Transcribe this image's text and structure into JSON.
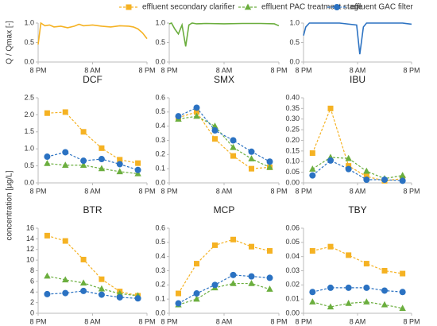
{
  "legend": {
    "position": "top",
    "items": [
      {
        "name": "effluent secondary clarifier",
        "color": "#F5B223",
        "marker": "square"
      },
      {
        "name": "effluent PAC treatment stage",
        "color": "#6BAE3E",
        "marker": "triangle"
      },
      {
        "name": "effluent GAC filter",
        "color": "#2B72C2",
        "marker": "circle"
      }
    ]
  },
  "chart_data": [
    {
      "type": "line",
      "ylabel": "Q / Qmax [-]",
      "color": "#F5B223",
      "xlim": [
        0,
        24
      ],
      "ylim": [
        0,
        1
      ],
      "xticks": [
        {
          "value": 0,
          "label": "8 PM"
        },
        {
          "value": 12,
          "label": "8 AM"
        },
        {
          "value": 24,
          "label": "8 PM"
        }
      ],
      "yticks": [
        {
          "value": 0,
          "label": "0.0"
        },
        0.5,
        {
          "value": 1,
          "label": "1.0"
        }
      ],
      "x": [
        0,
        0.6,
        1.5,
        2.5,
        3.5,
        5,
        6.5,
        8,
        9,
        10,
        12,
        14,
        16,
        18,
        20,
        21,
        22,
        23,
        24
      ],
      "values": [
        0.45,
        1.0,
        0.93,
        0.95,
        0.9,
        0.92,
        0.88,
        0.92,
        0.97,
        0.93,
        0.95,
        0.92,
        0.9,
        0.93,
        0.92,
        0.9,
        0.85,
        0.75,
        0.6
      ]
    },
    {
      "type": "line",
      "color": "#6BAE3E",
      "xlim": [
        0,
        24
      ],
      "ylim": [
        0,
        1
      ],
      "xticks": [
        {
          "value": 0,
          "label": "8 PM"
        },
        {
          "value": 12,
          "label": "8 AM"
        },
        {
          "value": 24,
          "label": "8 PM"
        }
      ],
      "yticks": [
        {
          "value": 0,
          "label": "0.0"
        },
        0.5,
        {
          "value": 1,
          "label": "1.0"
        }
      ],
      "x": [
        0,
        0.5,
        1.2,
        2,
        2.8,
        3.6,
        4.3,
        5,
        6,
        8,
        12,
        16,
        20,
        23,
        24
      ],
      "values": [
        0.98,
        1.0,
        0.85,
        0.72,
        0.95,
        0.4,
        0.95,
        1.0,
        0.98,
        0.99,
        0.98,
        0.99,
        0.99,
        0.98,
        0.93
      ]
    },
    {
      "type": "line",
      "color": "#2B72C2",
      "xlim": [
        0,
        24
      ],
      "ylim": [
        0,
        1
      ],
      "xticks": [
        {
          "value": 0,
          "label": "8 PM"
        },
        {
          "value": 12,
          "label": "8 AM"
        },
        {
          "value": 24,
          "label": "8 PM"
        }
      ],
      "yticks": [
        {
          "value": 0,
          "label": "0.0"
        },
        0.5,
        {
          "value": 1,
          "label": "1.0"
        }
      ],
      "x": [
        0,
        0.5,
        1.3,
        3,
        8,
        11.8,
        12.5,
        13.3,
        14,
        18,
        22,
        24
      ],
      "values": [
        0.68,
        0.9,
        1.0,
        1.0,
        1.0,
        0.95,
        0.2,
        0.9,
        1.0,
        1.0,
        1.0,
        0.97
      ]
    },
    {
      "type": "dashed-markers",
      "title": "DCF",
      "xlim": [
        0,
        24
      ],
      "ylim": [
        0,
        2.5
      ],
      "xticks": [
        {
          "value": 0,
          "label": "8 PM"
        },
        {
          "value": 12,
          "label": "8 AM"
        },
        {
          "value": 24,
          "label": "8 PM"
        }
      ],
      "yticks": [
        {
          "value": 0,
          "label": "0.0"
        },
        0.5,
        {
          "value": 1,
          "label": "1.0"
        },
        1.5,
        {
          "value": 2,
          "label": "2.0"
        },
        2.5
      ],
      "x": [
        2,
        6,
        10,
        14,
        18,
        22
      ],
      "series": [
        {
          "values": [
            2.05,
            2.08,
            1.5,
            1.02,
            0.68,
            0.58
          ]
        },
        {
          "values": [
            0.57,
            0.52,
            0.52,
            0.42,
            0.33,
            0.27
          ]
        },
        {
          "values": [
            0.77,
            0.9,
            0.65,
            0.7,
            0.55,
            0.38
          ]
        }
      ]
    },
    {
      "type": "dashed-markers",
      "title": "SMX",
      "xlim": [
        0,
        24
      ],
      "ylim": [
        0,
        0.6
      ],
      "xticks": [
        {
          "value": 0,
          "label": "8 PM"
        },
        {
          "value": 12,
          "label": "8 AM"
        },
        {
          "value": 24,
          "label": "8 PM"
        }
      ],
      "yticks": [
        {
          "value": 0,
          "label": "0.0"
        },
        0.1,
        0.2,
        0.3,
        0.4,
        0.5,
        0.6
      ],
      "x": [
        2,
        6,
        10,
        14,
        18,
        22
      ],
      "series": [
        {
          "values": [
            0.46,
            0.5,
            0.31,
            0.19,
            0.1,
            0.11
          ]
        },
        {
          "values": [
            0.45,
            0.47,
            0.4,
            0.25,
            0.17,
            0.11
          ]
        },
        {
          "values": [
            0.47,
            0.53,
            0.37,
            0.3,
            0.22,
            0.15
          ]
        }
      ]
    },
    {
      "type": "dashed-markers",
      "title": "IBU",
      "xlim": [
        0,
        24
      ],
      "ylim": [
        0,
        0.4
      ],
      "xticks": [
        {
          "value": 0,
          "label": "8 PM"
        },
        {
          "value": 12,
          "label": "8 AM"
        },
        {
          "value": 24,
          "label": "8 PM"
        }
      ],
      "yticks": [
        {
          "value": 0,
          "label": "0.00"
        },
        0.05,
        {
          "value": 0.1,
          "label": "0.10"
        },
        0.15,
        {
          "value": 0.2,
          "label": "0.20"
        },
        0.25,
        {
          "value": 0.3,
          "label": "0.30"
        },
        0.35,
        {
          "value": 0.4,
          "label": "0.40"
        }
      ],
      "x": [
        2,
        6,
        10,
        14,
        18,
        22
      ],
      "series": [
        {
          "values": [
            0.14,
            0.35,
            0.08,
            0.03,
            0.01,
            0.02
          ]
        },
        {
          "values": [
            0.065,
            0.12,
            0.115,
            0.055,
            0.02,
            0.035
          ]
        },
        {
          "values": [
            0.035,
            0.105,
            0.065,
            0.015,
            0.015,
            0.01
          ]
        }
      ]
    },
    {
      "type": "dashed-markers",
      "title": "BTR",
      "xlim": [
        0,
        24
      ],
      "ylim": [
        0,
        16
      ],
      "xticks": [
        {
          "value": 0,
          "label": "8 PM"
        },
        {
          "value": 12,
          "label": "8 AM"
        },
        {
          "value": 24,
          "label": "8 PM"
        }
      ],
      "yticks": [
        0,
        2,
        4,
        6,
        8,
        10,
        12,
        14,
        16
      ],
      "x": [
        2,
        6,
        10,
        14,
        18,
        22
      ],
      "series": [
        {
          "values": [
            14.6,
            13.6,
            10.1,
            6.4,
            4.1,
            3.3
          ]
        },
        {
          "values": [
            7.0,
            6.3,
            5.7,
            4.6,
            3.7,
            3.3
          ]
        },
        {
          "values": [
            3.6,
            3.8,
            4.2,
            3.5,
            3.0,
            2.8
          ]
        }
      ]
    },
    {
      "type": "dashed-markers",
      "title": "MCP",
      "ylabel": "concentration [µg/L]",
      "xlim": [
        0,
        24
      ],
      "ylim": [
        0,
        0.6
      ],
      "xticks": [
        {
          "value": 0,
          "label": "8 PM"
        },
        {
          "value": 12,
          "label": "8 AM"
        },
        {
          "value": 24,
          "label": "8 PM"
        }
      ],
      "yticks": [
        {
          "value": 0,
          "label": "0.0"
        },
        0.1,
        0.2,
        0.3,
        0.4,
        0.5,
        0.6
      ],
      "x": [
        2,
        6,
        10,
        14,
        18,
        22
      ],
      "series": [
        {
          "values": [
            0.14,
            0.35,
            0.48,
            0.52,
            0.47,
            0.44
          ]
        },
        {
          "values": [
            0.06,
            0.1,
            0.18,
            0.21,
            0.21,
            0.17
          ]
        },
        {
          "values": [
            0.07,
            0.14,
            0.2,
            0.27,
            0.26,
            0.25
          ]
        }
      ]
    },
    {
      "type": "dashed-markers",
      "title": "TBY",
      "xlim": [
        0,
        24
      ],
      "ylim": [
        0,
        0.06
      ],
      "xticks": [
        {
          "value": 0,
          "label": "8 PM"
        },
        {
          "value": 12,
          "label": "8 AM"
        },
        {
          "value": 24,
          "label": "8 PM"
        }
      ],
      "yticks": [
        {
          "value": 0,
          "label": "0.00"
        },
        0.01,
        0.02,
        0.03,
        0.04,
        0.05,
        0.06
      ],
      "x": [
        2,
        6,
        10,
        14,
        18,
        22
      ],
      "series": [
        {
          "values": [
            0.044,
            0.047,
            0.041,
            0.035,
            0.03,
            0.028
          ]
        },
        {
          "values": [
            0.008,
            0.0045,
            0.007,
            0.008,
            0.006,
            0.0035
          ]
        },
        {
          "values": [
            0.015,
            0.018,
            0.018,
            0.018,
            0.016,
            0.015
          ]
        }
      ]
    }
  ]
}
